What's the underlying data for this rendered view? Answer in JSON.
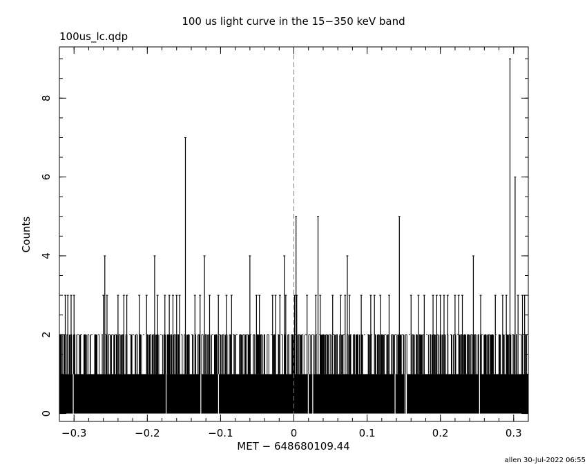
{
  "chart_data": {
    "type": "bar",
    "title": "100 us light curve in the 15−350 keV band",
    "subtitle": "100us_lc.qdp",
    "xlabel": "MET − 648680109.44",
    "ylabel": "Counts",
    "xlim": [
      -0.32,
      0.32
    ],
    "ylim": [
      -0.2,
      9.3
    ],
    "xticks": [
      -0.3,
      -0.2,
      -0.1,
      0,
      0.1,
      0.2,
      0.3
    ],
    "xtick_labels": [
      "−0.3",
      "−0.2",
      "−0.1",
      "0",
      "0.1",
      "0.2",
      "0.3"
    ],
    "yticks": [
      0,
      2,
      4,
      6,
      8
    ],
    "ytick_labels": [
      "0",
      "2",
      "4",
      "6",
      "8"
    ],
    "trigger_line_x": 0,
    "bin_width": 0.0001,
    "background_level": 1,
    "peaks": [
      {
        "x": -0.312,
        "y": 3
      },
      {
        "x": -0.3085,
        "y": 3
      },
      {
        "x": -0.304,
        "y": 3
      },
      {
        "x": -0.3,
        "y": 3
      },
      {
        "x": -0.26,
        "y": 3
      },
      {
        "x": -0.258,
        "y": 4
      },
      {
        "x": -0.255,
        "y": 3
      },
      {
        "x": -0.24,
        "y": 3
      },
      {
        "x": -0.232,
        "y": 3
      },
      {
        "x": -0.228,
        "y": 3
      },
      {
        "x": -0.211,
        "y": 3
      },
      {
        "x": -0.201,
        "y": 3
      },
      {
        "x": -0.19,
        "y": 4
      },
      {
        "x": -0.186,
        "y": 3
      },
      {
        "x": -0.176,
        "y": 3
      },
      {
        "x": -0.17,
        "y": 3
      },
      {
        "x": -0.165,
        "y": 3
      },
      {
        "x": -0.16,
        "y": 3
      },
      {
        "x": -0.156,
        "y": 3
      },
      {
        "x": -0.148,
        "y": 7
      },
      {
        "x": -0.135,
        "y": 3
      },
      {
        "x": -0.128,
        "y": 3
      },
      {
        "x": -0.122,
        "y": 4
      },
      {
        "x": -0.115,
        "y": 3
      },
      {
        "x": -0.103,
        "y": 3
      },
      {
        "x": -0.092,
        "y": 3
      },
      {
        "x": -0.085,
        "y": 3
      },
      {
        "x": -0.06,
        "y": 4
      },
      {
        "x": -0.051,
        "y": 3
      },
      {
        "x": -0.047,
        "y": 3
      },
      {
        "x": -0.029,
        "y": 3
      },
      {
        "x": -0.025,
        "y": 3
      },
      {
        "x": -0.019,
        "y": 3
      },
      {
        "x": -0.013,
        "y": 4
      },
      {
        "x": -0.011,
        "y": 3
      },
      {
        "x": 0.001,
        "y": 3
      },
      {
        "x": 0.003,
        "y": 5
      },
      {
        "x": 0.004,
        "y": 3
      },
      {
        "x": 0.018,
        "y": 3
      },
      {
        "x": 0.03,
        "y": 3
      },
      {
        "x": 0.033,
        "y": 5
      },
      {
        "x": 0.036,
        "y": 3
      },
      {
        "x": 0.053,
        "y": 3
      },
      {
        "x": 0.064,
        "y": 3
      },
      {
        "x": 0.07,
        "y": 3
      },
      {
        "x": 0.073,
        "y": 4
      },
      {
        "x": 0.076,
        "y": 3
      },
      {
        "x": 0.092,
        "y": 3
      },
      {
        "x": 0.105,
        "y": 3
      },
      {
        "x": 0.11,
        "y": 3
      },
      {
        "x": 0.118,
        "y": 3
      },
      {
        "x": 0.13,
        "y": 3
      },
      {
        "x": 0.144,
        "y": 5
      },
      {
        "x": 0.16,
        "y": 3
      },
      {
        "x": 0.17,
        "y": 3
      },
      {
        "x": 0.178,
        "y": 3
      },
      {
        "x": 0.19,
        "y": 3
      },
      {
        "x": 0.195,
        "y": 3
      },
      {
        "x": 0.2,
        "y": 3
      },
      {
        "x": 0.205,
        "y": 3
      },
      {
        "x": 0.21,
        "y": 3
      },
      {
        "x": 0.22,
        "y": 3
      },
      {
        "x": 0.225,
        "y": 3
      },
      {
        "x": 0.23,
        "y": 3
      },
      {
        "x": 0.245,
        "y": 4
      },
      {
        "x": 0.255,
        "y": 3
      },
      {
        "x": 0.275,
        "y": 3
      },
      {
        "x": 0.285,
        "y": 3
      },
      {
        "x": 0.29,
        "y": 3
      },
      {
        "x": 0.295,
        "y": 9
      },
      {
        "x": 0.302,
        "y": 6
      },
      {
        "x": 0.306,
        "y": 3
      },
      {
        "x": 0.312,
        "y": 3
      },
      {
        "x": 0.315,
        "y": 3
      }
    ],
    "grid": false,
    "legend": "none"
  },
  "footer": "allen 30-Jul-2022 06:55"
}
